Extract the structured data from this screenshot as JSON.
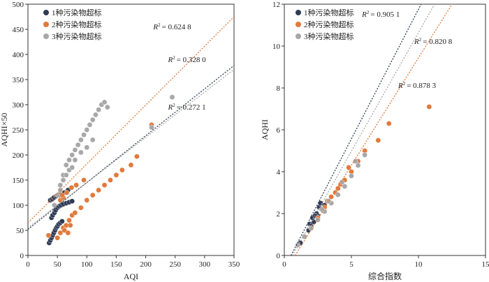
{
  "colors": {
    "series1": "#2f3b55",
    "series2": "#e07a3c",
    "series3": "#a8a8a8",
    "axis": "#333333",
    "frame": "#333333"
  },
  "chart_data": [
    {
      "type": "scatter",
      "xlabel": "AQI",
      "ylabel": "AQHI×50",
      "xlim": [
        0,
        350
      ],
      "ylim": [
        0,
        500
      ],
      "xticks": [
        "0",
        "50",
        "100",
        "150",
        "200",
        "250",
        "300",
        "350"
      ],
      "yticks": [
        "0",
        "50",
        "100",
        "150",
        "200",
        "250",
        "300",
        "350",
        "400",
        "450",
        "500"
      ],
      "legend": [
        "1种污染物超标",
        "2种污染物超标",
        "3种污染物超标"
      ],
      "legend_position": "top-left",
      "series": [
        {
          "name": "1种污染物超标",
          "x": [
            36,
            38,
            40,
            42,
            44,
            46,
            48,
            50,
            52,
            55,
            58,
            40,
            42,
            45,
            47,
            50,
            53,
            56,
            60,
            65,
            70,
            75,
            38,
            41,
            44,
            48,
            52,
            57,
            62,
            68
          ],
          "y": [
            25,
            30,
            35,
            40,
            45,
            50,
            55,
            58,
            62,
            65,
            68,
            75,
            80,
            85,
            90,
            95,
            98,
            100,
            102,
            104,
            106,
            108,
            110,
            112,
            115,
            118,
            120,
            122,
            125,
            130
          ]
        },
        {
          "name": "2种污染物超标",
          "x": [
            35,
            50,
            55,
            60,
            65,
            70,
            75,
            80,
            90,
            100,
            110,
            120,
            130,
            140,
            150,
            160,
            175,
            185,
            210,
            45,
            55,
            60,
            62,
            68,
            72,
            58,
            66,
            74,
            82,
            95
          ],
          "y": [
            40,
            35,
            45,
            55,
            60,
            70,
            80,
            85,
            95,
            110,
            120,
            130,
            140,
            150,
            160,
            170,
            180,
            197,
            260,
            100,
            110,
            115,
            50,
            45,
            60,
            120,
            125,
            135,
            140,
            150
          ]
        },
        {
          "name": "3种污染物超标",
          "x": [
            45,
            50,
            55,
            60,
            65,
            70,
            75,
            80,
            85,
            90,
            95,
            100,
            105,
            110,
            115,
            120,
            125,
            130,
            135,
            210,
            245,
            60,
            70,
            80,
            90,
            100,
            110,
            55,
            65,
            75
          ],
          "y": [
            100,
            120,
            140,
            160,
            180,
            190,
            200,
            210,
            220,
            230,
            240,
            250,
            260,
            270,
            280,
            290,
            300,
            305,
            295,
            255,
            315,
            150,
            170,
            190,
            205,
            215,
            230,
            130,
            160,
            175
          ]
        }
      ],
      "trendlines": [
        {
          "series": "1种污染物超标",
          "x": [
            0,
            350
          ],
          "y": [
            52,
            378
          ]
        },
        {
          "series": "2种污染物超标",
          "x": [
            0,
            350
          ],
          "y": [
            65,
            475
          ]
        },
        {
          "series": "3种污染物超标",
          "x": [
            0,
            350
          ],
          "y": [
            55,
            370
          ]
        }
      ],
      "annotations": [
        {
          "text": "= 0.624 8",
          "x": 245,
          "y": 450
        },
        {
          "text": "= 0.328 0",
          "x": 270,
          "y": 385
        },
        {
          "text": "= 0.272 1",
          "x": 270,
          "y": 290
        }
      ]
    },
    {
      "type": "scatter",
      "xlabel": "综合指数",
      "ylabel": "AQHI",
      "xlim": [
        0,
        15
      ],
      "ylim": [
        0,
        12
      ],
      "xticks": [
        "0",
        "5",
        "10",
        "15"
      ],
      "yticks": [
        "0",
        "2",
        "4",
        "6",
        "8",
        "10",
        "12"
      ],
      "legend": [
        "1种污染物超标",
        "2种污染物超标",
        "3种污染物超标"
      ],
      "legend_position": "top-left",
      "series": [
        {
          "name": "1种污染物超标",
          "x": [
            1.2,
            1.5,
            1.8,
            2.0,
            2.2,
            2.5,
            2.8,
            3.0,
            2.1,
            2.4,
            2.6,
            1.9,
            2.3,
            2.7,
            3.2
          ],
          "y": [
            0.6,
            0.9,
            1.2,
            1.4,
            1.6,
            1.9,
            2.2,
            2.4,
            1.8,
            2.0,
            2.3,
            1.5,
            1.9,
            2.5,
            2.6
          ]
        },
        {
          "name": "2种污染物超标",
          "x": [
            2.5,
            3.0,
            3.5,
            4.0,
            4.5,
            5.0,
            5.5,
            6.0,
            7.0,
            7.8,
            10.8,
            3.2,
            3.8,
            4.2,
            4.8
          ],
          "y": [
            1.8,
            2.3,
            2.8,
            3.2,
            3.6,
            4.0,
            4.5,
            5.0,
            5.5,
            6.3,
            7.1,
            2.6,
            3.0,
            3.4,
            4.2
          ]
        },
        {
          "name": "3种污染物超标",
          "x": [
            1.0,
            1.5,
            2.0,
            2.5,
            3.0,
            3.5,
            4.0,
            4.5,
            5.0,
            5.5,
            6.0,
            2.8,
            3.3,
            4.3,
            5.3
          ],
          "y": [
            0.5,
            0.9,
            1.3,
            1.7,
            2.1,
            2.5,
            2.9,
            3.3,
            3.8,
            4.3,
            4.8,
            2.2,
            2.6,
            3.5,
            4.5
          ]
        }
      ],
      "trendlines": [
        {
          "series": "1种污染物超标",
          "x": [
            0.5,
            10.2
          ],
          "y": [
            0,
            12
          ]
        },
        {
          "series": "2种污染物超标",
          "x": [
            0.8,
            12.5
          ],
          "y": [
            0,
            12
          ]
        },
        {
          "series": "3种污染物超标",
          "x": [
            0.6,
            11.2
          ],
          "y": [
            0,
            12
          ]
        }
      ],
      "annotations": [
        {
          "text": "= 0.905 1",
          "x": 7.2,
          "y": 11.4
        },
        {
          "text": "= 0.820 8",
          "x": 11.1,
          "y": 10.1
        },
        {
          "text": "= 0.878 3",
          "x": 9.9,
          "y": 8.0
        }
      ]
    }
  ]
}
